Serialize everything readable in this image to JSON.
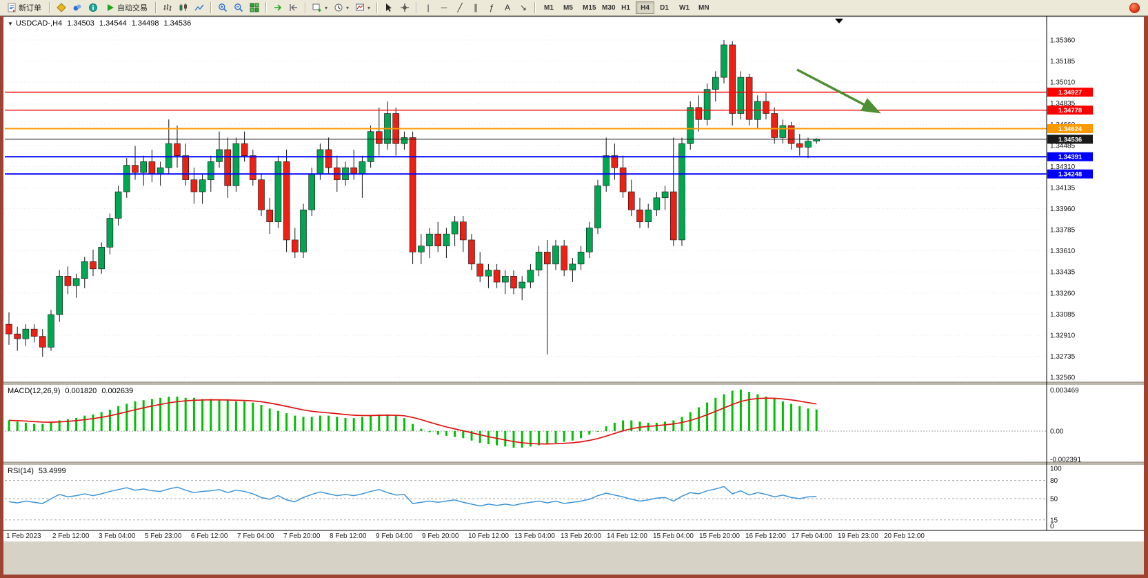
{
  "window": {
    "border_color": "#9E4232",
    "toolbar_bg": "#ECE9D8"
  },
  "toolbar": {
    "new_order_label": "新订单",
    "autotrading_label": "自动交易",
    "dropdown_glyph": "▾",
    "tool_glyphs": {
      "vline": "|",
      "hline": "─",
      "trendline": "╱",
      "channel": "∥",
      "fibonacci": "ƒ",
      "text": "A",
      "arrows": "↘"
    },
    "timeframes": [
      "M1",
      "M5",
      "M15",
      "M30",
      "H1",
      "H4",
      "D1",
      "W1",
      "MN"
    ],
    "active_timeframe": "H4"
  },
  "chart": {
    "symbol_period": "USDCAD-,H4",
    "collapse_glyph": "▼",
    "ohlc": {
      "open": "1.34503",
      "high": "1.34544",
      "low": "1.34498",
      "close": "1.34536"
    },
    "bull_color": "#00A651",
    "bear_color": "#ED2015",
    "annotation_arrow_color": "#4E8F33",
    "price_axis_labels": [
      "1.35360",
      "1.35185",
      "1.35010",
      "1.34835",
      "1.34660",
      "1.34485",
      "1.34310",
      "1.34135",
      "1.33960",
      "1.33785",
      "1.33610",
      "1.33435",
      "1.33260",
      "1.33085",
      "1.32910",
      "1.32735",
      "1.32560"
    ],
    "time_axis_labels": [
      "1 Feb 2023",
      "2 Feb 12:00",
      "3 Feb 04:00",
      "5 Feb 23:00",
      "6 Feb 12:00",
      "7 Feb 04:00",
      "7 Feb 20:00",
      "8 Feb 12:00",
      "9 Feb 04:00",
      "9 Feb 20:00",
      "10 Feb 12:00",
      "13 Feb 04:00",
      "13 Feb 20:00",
      "14 Feb 12:00",
      "15 Feb 04:00",
      "15 Feb 20:00",
      "16 Feb 12:00",
      "17 Feb 04:00",
      "19 Feb 23:00",
      "20 Feb 12:00"
    ]
  },
  "macd_panel": {
    "title": "MACD(12,26,9)",
    "value_main": "0.001820",
    "value_signal": "0.002639",
    "scale_labels": [
      "0.003469",
      "0.00",
      "-0.002391"
    ],
    "histogram_color": "#00C000",
    "signal_color": "#E01010"
  },
  "rsi_panel": {
    "title": "RSI(14)",
    "value": "53.4999",
    "scale_labels": [
      "100",
      "80",
      "50",
      "15",
      "0"
    ],
    "line_color": "#3E94D8"
  },
  "chart_data": [
    {
      "type": "candlestick",
      "symbol": "USDCAD",
      "timeframe": "H4",
      "ylim": [
        1.3256,
        1.3536
      ],
      "levels": [
        {
          "value": 1.34927,
          "label": "1.34927",
          "color": "#FF0000",
          "width": 1.4
        },
        {
          "value": 1.34778,
          "label": "1.34778",
          "color": "#FF0000",
          "width": 1.4
        },
        {
          "value": 1.34624,
          "label": "1.34624",
          "color": "#FF9900",
          "width": 2
        },
        {
          "value": 1.34536,
          "label": "1.34536",
          "color": "#1A1A1A",
          "width": 1
        },
        {
          "value": 1.34391,
          "label": "1.34391",
          "color": "#0000FF",
          "width": 2
        },
        {
          "value": 1.34248,
          "label": "1.34248",
          "color": "#0000FF",
          "width": 2
        }
      ],
      "ohlc": [
        [
          1.33,
          1.331,
          1.3283,
          1.3292
        ],
        [
          1.3292,
          1.3298,
          1.3278,
          1.3288
        ],
        [
          1.3288,
          1.33,
          1.3282,
          1.3296
        ],
        [
          1.3296,
          1.33,
          1.3285,
          1.329
        ],
        [
          1.329,
          1.3296,
          1.3273,
          1.3281
        ],
        [
          1.3281,
          1.3312,
          1.3278,
          1.3308
        ],
        [
          1.3308,
          1.3345,
          1.3302,
          1.334
        ],
        [
          1.334,
          1.3348,
          1.3325,
          1.3332
        ],
        [
          1.3332,
          1.3342,
          1.3322,
          1.3338
        ],
        [
          1.3338,
          1.3356,
          1.333,
          1.3352
        ],
        [
          1.3352,
          1.3362,
          1.334,
          1.3346
        ],
        [
          1.3346,
          1.3368,
          1.3342,
          1.3364
        ],
        [
          1.3364,
          1.3392,
          1.3358,
          1.3388
        ],
        [
          1.3388,
          1.3415,
          1.3382,
          1.341
        ],
        [
          1.341,
          1.3438,
          1.3405,
          1.3432
        ],
        [
          1.3432,
          1.3448,
          1.342,
          1.3426
        ],
        [
          1.3426,
          1.344,
          1.3415,
          1.3435
        ],
        [
          1.3435,
          1.3445,
          1.3418,
          1.3425
        ],
        [
          1.3425,
          1.3435,
          1.3415,
          1.343
        ],
        [
          1.343,
          1.347,
          1.3425,
          1.345
        ],
        [
          1.345,
          1.3465,
          1.343,
          1.344
        ],
        [
          1.344,
          1.345,
          1.3415,
          1.342
        ],
        [
          1.342,
          1.343,
          1.34,
          1.341
        ],
        [
          1.341,
          1.3425,
          1.34,
          1.342
        ],
        [
          1.342,
          1.344,
          1.341,
          1.3435
        ],
        [
          1.3435,
          1.346,
          1.343,
          1.3445
        ],
        [
          1.3445,
          1.3455,
          1.3405,
          1.3415
        ],
        [
          1.3415,
          1.3455,
          1.341,
          1.345
        ],
        [
          1.345,
          1.346,
          1.3435,
          1.344
        ],
        [
          1.344,
          1.3445,
          1.3415,
          1.342
        ],
        [
          1.342,
          1.3425,
          1.339,
          1.3395
        ],
        [
          1.3395,
          1.3405,
          1.3375,
          1.3385
        ],
        [
          1.3385,
          1.344,
          1.338,
          1.3435
        ],
        [
          1.3435,
          1.3445,
          1.336,
          1.337
        ],
        [
          1.337,
          1.338,
          1.3355,
          1.336
        ],
        [
          1.336,
          1.34,
          1.3355,
          1.3395
        ],
        [
          1.3395,
          1.343,
          1.339,
          1.3425
        ],
        [
          1.3425,
          1.345,
          1.342,
          1.3445
        ],
        [
          1.3445,
          1.3455,
          1.3425,
          1.343
        ],
        [
          1.343,
          1.344,
          1.341,
          1.342
        ],
        [
          1.342,
          1.3435,
          1.3415,
          1.343
        ],
        [
          1.343,
          1.3445,
          1.342,
          1.3425
        ],
        [
          1.3425,
          1.344,
          1.3405,
          1.3435
        ],
        [
          1.3435,
          1.3465,
          1.343,
          1.346
        ],
        [
          1.346,
          1.348,
          1.344,
          1.345
        ],
        [
          1.345,
          1.3485,
          1.3445,
          1.3475
        ],
        [
          1.3475,
          1.348,
          1.344,
          1.345
        ],
        [
          1.345,
          1.346,
          1.3445,
          1.3455
        ],
        [
          1.3455,
          1.346,
          1.335,
          1.336
        ],
        [
          1.336,
          1.3375,
          1.335,
          1.3365
        ],
        [
          1.3365,
          1.338,
          1.3355,
          1.3375
        ],
        [
          1.3375,
          1.3385,
          1.336,
          1.3365
        ],
        [
          1.3365,
          1.338,
          1.3355,
          1.3375
        ],
        [
          1.3375,
          1.339,
          1.3365,
          1.3385
        ],
        [
          1.3385,
          1.339,
          1.336,
          1.337
        ],
        [
          1.337,
          1.3375,
          1.3345,
          1.335
        ],
        [
          1.335,
          1.336,
          1.3335,
          1.334
        ],
        [
          1.334,
          1.335,
          1.333,
          1.3345
        ],
        [
          1.3345,
          1.335,
          1.333,
          1.3335
        ],
        [
          1.3335,
          1.3345,
          1.3325,
          1.334
        ],
        [
          1.334,
          1.3345,
          1.3325,
          1.333
        ],
        [
          1.333,
          1.334,
          1.332,
          1.3335
        ],
        [
          1.3335,
          1.335,
          1.333,
          1.3345
        ],
        [
          1.3345,
          1.3365,
          1.334,
          1.336
        ],
        [
          1.336,
          1.337,
          1.3275,
          1.335
        ],
        [
          1.335,
          1.337,
          1.3345,
          1.3365
        ],
        [
          1.3365,
          1.337,
          1.334,
          1.3345
        ],
        [
          1.3345,
          1.3355,
          1.3335,
          1.335
        ],
        [
          1.335,
          1.3365,
          1.3345,
          1.336
        ],
        [
          1.336,
          1.3385,
          1.3355,
          1.338
        ],
        [
          1.338,
          1.342,
          1.3375,
          1.3415
        ],
        [
          1.3415,
          1.3455,
          1.341,
          1.344
        ],
        [
          1.344,
          1.345,
          1.342,
          1.343
        ],
        [
          1.343,
          1.344,
          1.3405,
          1.341
        ],
        [
          1.341,
          1.342,
          1.339,
          1.3395
        ],
        [
          1.3395,
          1.3405,
          1.338,
          1.3385
        ],
        [
          1.3385,
          1.34,
          1.338,
          1.3395
        ],
        [
          1.3395,
          1.341,
          1.339,
          1.3405
        ],
        [
          1.3405,
          1.3415,
          1.3395,
          1.341
        ],
        [
          1.341,
          1.3455,
          1.3365,
          1.337
        ],
        [
          1.337,
          1.3455,
          1.3365,
          1.345
        ],
        [
          1.345,
          1.3485,
          1.3445,
          1.348
        ],
        [
          1.348,
          1.349,
          1.346,
          1.347
        ],
        [
          1.347,
          1.35,
          1.3465,
          1.3495
        ],
        [
          1.3495,
          1.351,
          1.3485,
          1.3505
        ],
        [
          1.3505,
          1.3536,
          1.35,
          1.3532
        ],
        [
          1.3532,
          1.3535,
          1.3465,
          1.3475
        ],
        [
          1.3475,
          1.351,
          1.347,
          1.3505
        ],
        [
          1.3505,
          1.3508,
          1.3465,
          1.347
        ],
        [
          1.347,
          1.349,
          1.3462,
          1.3485
        ],
        [
          1.3485,
          1.3492,
          1.347,
          1.3475
        ],
        [
          1.3475,
          1.348,
          1.345,
          1.3455
        ],
        [
          1.3455,
          1.347,
          1.345,
          1.3465
        ],
        [
          1.3465,
          1.3468,
          1.3445,
          1.345
        ],
        [
          1.345,
          1.3458,
          1.344,
          1.3447
        ],
        [
          1.3447,
          1.3455,
          1.3438,
          1.3452
        ],
        [
          1.3452,
          1.34544,
          1.34498,
          1.34536
        ]
      ]
    },
    {
      "type": "bar",
      "name": "MACD(12,26,9)",
      "signal_ema_period": 9,
      "ylim": [
        -0.002391,
        0.003469
      ],
      "values": [
        0.0009,
        0.0008,
        0.0007,
        0.0006,
        0.0006,
        0.0007,
        0.0009,
        0.001,
        0.0011,
        0.0013,
        0.0014,
        0.0016,
        0.0018,
        0.0021,
        0.0023,
        0.0025,
        0.0026,
        0.0027,
        0.0028,
        0.0029,
        0.0029,
        0.0028,
        0.0028,
        0.0027,
        0.0027,
        0.0026,
        0.0026,
        0.0025,
        0.0025,
        0.0024,
        0.0022,
        0.0019,
        0.0017,
        0.0015,
        0.0013,
        0.0012,
        0.0012,
        0.0013,
        0.0013,
        0.0012,
        0.0011,
        0.0011,
        0.0012,
        0.0013,
        0.0014,
        0.0014,
        0.0013,
        0.0011,
        0.0006,
        0.0002,
        -0.0001,
        -0.0003,
        -0.0004,
        -0.0005,
        -0.0006,
        -0.0008,
        -0.001,
        -0.0011,
        -0.0012,
        -0.0013,
        -0.0014,
        -0.0014,
        -0.0013,
        -0.0012,
        -0.0011,
        -0.001,
        -0.0009,
        -0.0008,
        -0.0006,
        -0.0003,
        0.0,
        0.0004,
        0.0007,
        0.0009,
        0.0009,
        0.0008,
        0.0007,
        0.0007,
        0.0008,
        0.0009,
        0.0012,
        0.0016,
        0.002,
        0.0024,
        0.0028,
        0.0031,
        0.0034,
        0.0035,
        0.0033,
        0.0031,
        0.0029,
        0.0027,
        0.0025,
        0.0023,
        0.0021,
        0.0019,
        0.00182
      ]
    },
    {
      "type": "line",
      "name": "RSI(14)",
      "ylim": [
        0,
        100
      ],
      "levels": [
        80,
        50,
        15
      ],
      "values": [
        45,
        43,
        46,
        44,
        42,
        50,
        57,
        53,
        55,
        58,
        55,
        58,
        62,
        65,
        68,
        64,
        66,
        63,
        62,
        66,
        69,
        64,
        60,
        62,
        63,
        65,
        60,
        64,
        62,
        58,
        52,
        49,
        55,
        48,
        45,
        52,
        57,
        61,
        58,
        55,
        57,
        55,
        58,
        62,
        65,
        60,
        56,
        57,
        42,
        44,
        46,
        44,
        46,
        48,
        44,
        41,
        38,
        41,
        39,
        41,
        39,
        42,
        44,
        46,
        43,
        46,
        42,
        44,
        46,
        49,
        55,
        59,
        56,
        53,
        49,
        46,
        48,
        51,
        52,
        46,
        54,
        60,
        58,
        63,
        66,
        70,
        58,
        63,
        56,
        60,
        57,
        53,
        56,
        52,
        50,
        53,
        53.5
      ]
    }
  ]
}
